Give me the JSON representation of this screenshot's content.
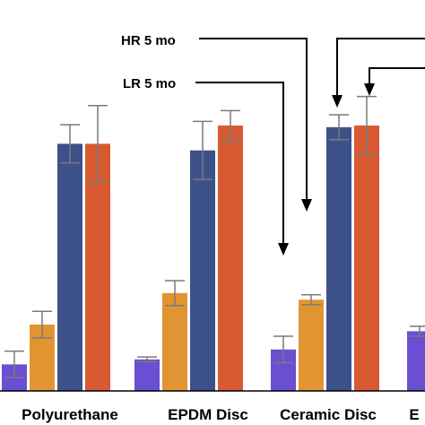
{
  "chart_data": {
    "type": "bar",
    "categories": [
      "Polyurethane",
      "EPDM Disc",
      "Ceramic Disc",
      "E"
    ],
    "series": [
      {
        "color": "#6a4fd2",
        "values": [
          3.2,
          3.8,
          5.0,
          7.2
        ],
        "errors": [
          1.6,
          0.3,
          1.6,
          0.6
        ]
      },
      {
        "color": "#e39432",
        "values": [
          8.0,
          11.8,
          11.0,
          null
        ],
        "errors": [
          1.6,
          1.5,
          0.6,
          null
        ]
      },
      {
        "color": "#3d5189",
        "values": [
          29.8,
          29.0,
          31.8,
          null
        ],
        "errors": [
          2.3,
          3.5,
          1.5,
          null
        ]
      },
      {
        "color": "#d75a33",
        "values": [
          29.8,
          32.0,
          32.0,
          null
        ],
        "errors": [
          4.6,
          1.8,
          3.5,
          null
        ]
      }
    ],
    "ylim": [
      0,
      45
    ],
    "grid": false,
    "annotations": [
      {
        "text": "HR 5 mo",
        "points_to": "Ceramic Disc"
      },
      {
        "text": "LR 5 mo",
        "points_to": "Ceramic Disc"
      }
    ]
  }
}
